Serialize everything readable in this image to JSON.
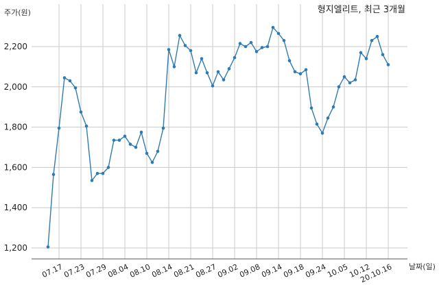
{
  "chart_data": {
    "type": "line",
    "title": "형지엘리트, 최근 3개월",
    "ylabel": "주가(원)",
    "xlabel": "날짜(일)",
    "ylim": [
      1150,
      2340
    ],
    "yticks": [
      1200,
      1400,
      1600,
      1800,
      2000,
      2200
    ],
    "ytick_labels": [
      "1,200",
      "1,400",
      "1,600",
      "1,800",
      "2,000",
      "2,200"
    ],
    "grid": true,
    "xtick_labels": [
      "07.17",
      "07.23",
      "07.29",
      "08.04",
      "08.10",
      "08.14",
      "08.21",
      "08.27",
      "09.02",
      "09.08",
      "09.14",
      "09.18",
      "09.24",
      "10.05",
      "10.12",
      "20.10.16"
    ],
    "xtick_index": [
      2,
      6,
      10,
      14,
      18,
      22,
      26,
      30,
      34,
      38,
      42,
      46,
      50,
      54,
      58,
      62
    ],
    "series": [
      {
        "color": "#2f7bb0",
        "x": [
          "07.15",
          "07.16",
          "07.17",
          "07.20",
          "07.21",
          "07.22",
          "07.23",
          "07.24",
          "07.27",
          "07.28",
          "07.29",
          "07.30",
          "07.31",
          "08.03",
          "08.04",
          "08.05",
          "08.06",
          "08.07",
          "08.10",
          "08.11",
          "08.12",
          "08.13",
          "08.14",
          "08.18",
          "08.19",
          "08.20",
          "08.21",
          "08.24",
          "08.25",
          "08.26",
          "08.27",
          "08.28",
          "08.31",
          "09.01",
          "09.02",
          "09.03",
          "09.04",
          "09.07",
          "09.08",
          "09.09",
          "09.10",
          "09.11",
          "09.14",
          "09.15",
          "09.16",
          "09.17",
          "09.18",
          "09.21",
          "09.22",
          "09.23",
          "09.24",
          "09.25",
          "09.28",
          "09.29",
          "10.05",
          "10.06",
          "10.07",
          "10.08",
          "10.12",
          "10.13",
          "10.14",
          "10.15",
          "10.16"
        ],
        "values": [
          1205,
          1565,
          1795,
          2045,
          2030,
          1995,
          1875,
          1805,
          1535,
          1570,
          1570,
          1600,
          1735,
          1735,
          1755,
          1715,
          1700,
          1775,
          1670,
          1625,
          1680,
          1795,
          2185,
          2100,
          2255,
          2205,
          2180,
          2070,
          2140,
          2070,
          2005,
          2075,
          2035,
          2090,
          2145,
          2215,
          2200,
          2220,
          2175,
          2195,
          2200,
          2295,
          2265,
          2230,
          2130,
          2075,
          2065,
          2085,
          1895,
          1815,
          1770,
          1845,
          1900,
          2000,
          2050,
          2020,
          2035,
          2170,
          2140,
          2230,
          2250,
          2160,
          2110
        ]
      }
    ]
  }
}
